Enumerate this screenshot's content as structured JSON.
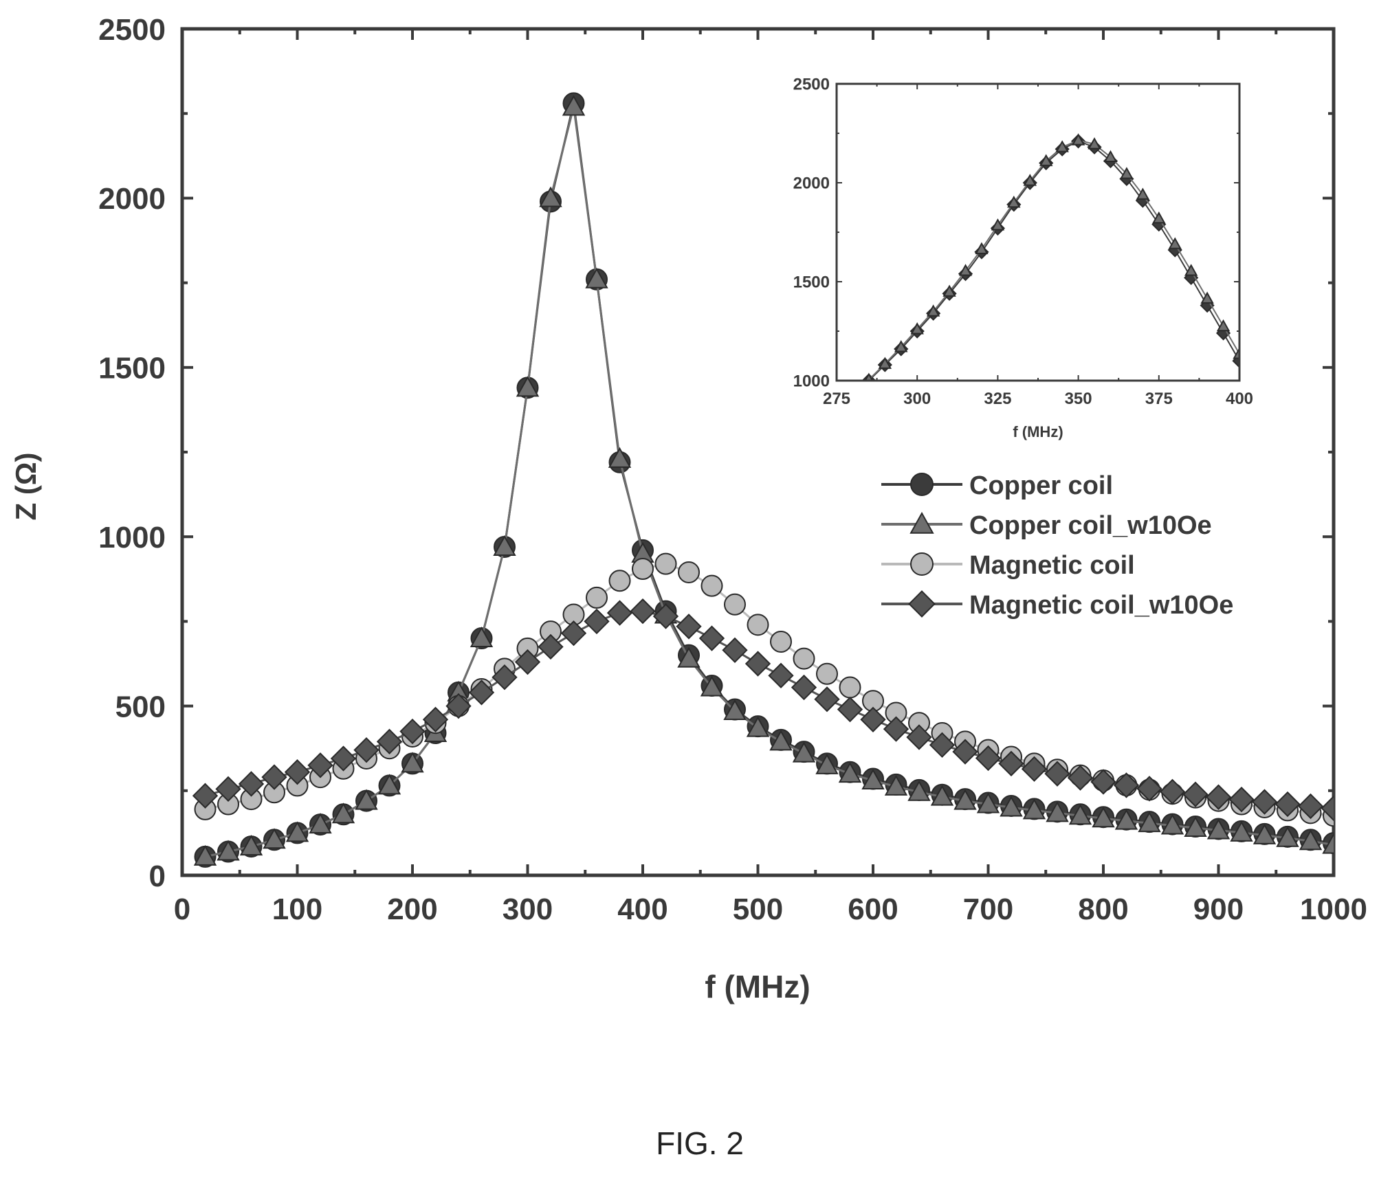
{
  "figure_label": "FIG. 2",
  "colors": {
    "axis": "#3a3a3a",
    "copper_coil": "#3b3b3b",
    "copper_coil_w10oe": "#6e6e6e",
    "magnetic_coil": "#b9b9b9",
    "magnetic_coil_w10oe": "#555555"
  },
  "chart_data": [
    {
      "type": "line",
      "panel": "main",
      "title": "",
      "xlabel": "f (MHz)",
      "ylabel": "Z (Ω)",
      "xlim": [
        0,
        1000
      ],
      "ylim": [
        0,
        2500
      ],
      "x_ticks": [
        "0",
        "100",
        "200",
        "300",
        "400",
        "500",
        "600",
        "700",
        "800",
        "900",
        "1000"
      ],
      "y_ticks": [
        "0",
        "500",
        "1000",
        "1500",
        "2000",
        "2500"
      ],
      "legend_position": "right-middle",
      "grid": false,
      "series": [
        {
          "name": "Copper coil",
          "marker": "circle",
          "points": [
            [
              20,
              55
            ],
            [
              40,
              70
            ],
            [
              60,
              85
            ],
            [
              80,
              105
            ],
            [
              100,
              125
            ],
            [
              120,
              150
            ],
            [
              140,
              180
            ],
            [
              160,
              220
            ],
            [
              180,
              265
            ],
            [
              200,
              330
            ],
            [
              220,
              420
            ],
            [
              240,
              540
            ],
            [
              260,
              700
            ],
            [
              280,
              970
            ],
            [
              300,
              1440
            ],
            [
              320,
              1990
            ],
            [
              340,
              2280
            ],
            [
              360,
              1760
            ],
            [
              380,
              1220
            ],
            [
              400,
              960
            ],
            [
              420,
              780
            ],
            [
              440,
              650
            ],
            [
              460,
              560
            ],
            [
              480,
              490
            ],
            [
              500,
              440
            ],
            [
              520,
              400
            ],
            [
              540,
              365
            ],
            [
              560,
              330
            ],
            [
              580,
              305
            ],
            [
              600,
              285
            ],
            [
              620,
              268
            ],
            [
              640,
              252
            ],
            [
              660,
              238
            ],
            [
              680,
              225
            ],
            [
              700,
              214
            ],
            [
              720,
              205
            ],
            [
              740,
              196
            ],
            [
              760,
              188
            ],
            [
              780,
              180
            ],
            [
              800,
              172
            ],
            [
              820,
              165
            ],
            [
              840,
              158
            ],
            [
              860,
              151
            ],
            [
              880,
              144
            ],
            [
              900,
              137
            ],
            [
              920,
              130
            ],
            [
              940,
              122
            ],
            [
              960,
              114
            ],
            [
              980,
              105
            ],
            [
              1000,
              95
            ]
          ]
        },
        {
          "name": "Copper coil_w10Oe",
          "marker": "triangle",
          "points": [
            [
              20,
              55
            ],
            [
              40,
              70
            ],
            [
              60,
              85
            ],
            [
              80,
              105
            ],
            [
              100,
              125
            ],
            [
              120,
              150
            ],
            [
              140,
              180
            ],
            [
              160,
              220
            ],
            [
              180,
              265
            ],
            [
              200,
              330
            ],
            [
              220,
              420
            ],
            [
              240,
              540
            ],
            [
              260,
              700
            ],
            [
              280,
              970
            ],
            [
              300,
              1440
            ],
            [
              320,
              2000
            ],
            [
              340,
              2270
            ],
            [
              360,
              1760
            ],
            [
              380,
              1230
            ],
            [
              400,
              950
            ],
            [
              420,
              770
            ],
            [
              440,
              640
            ],
            [
              460,
              555
            ],
            [
              480,
              485
            ],
            [
              500,
              435
            ],
            [
              520,
              395
            ],
            [
              540,
              360
            ],
            [
              560,
              325
            ],
            [
              580,
              300
            ],
            [
              600,
              280
            ],
            [
              620,
              262
            ],
            [
              640,
              246
            ],
            [
              660,
              232
            ],
            [
              680,
              220
            ],
            [
              700,
              210
            ],
            [
              720,
              200
            ],
            [
              740,
              192
            ],
            [
              760,
              184
            ],
            [
              780,
              176
            ],
            [
              800,
              168
            ],
            [
              820,
              161
            ],
            [
              840,
              154
            ],
            [
              860,
              147
            ],
            [
              880,
              140
            ],
            [
              900,
              133
            ],
            [
              920,
              126
            ],
            [
              940,
              118
            ],
            [
              960,
              110
            ],
            [
              980,
              101
            ],
            [
              1000,
              90
            ]
          ]
        },
        {
          "name": "Magnetic coil",
          "marker": "circle",
          "points": [
            [
              20,
              195
            ],
            [
              40,
              210
            ],
            [
              60,
              225
            ],
            [
              80,
              245
            ],
            [
              100,
              265
            ],
            [
              120,
              290
            ],
            [
              140,
              315
            ],
            [
              160,
              345
            ],
            [
              180,
              375
            ],
            [
              200,
              410
            ],
            [
              220,
              450
            ],
            [
              240,
              500
            ],
            [
              260,
              550
            ],
            [
              280,
              610
            ],
            [
              300,
              670
            ],
            [
              320,
              720
            ],
            [
              340,
              770
            ],
            [
              360,
              820
            ],
            [
              380,
              870
            ],
            [
              400,
              905
            ],
            [
              420,
              920
            ],
            [
              440,
              895
            ],
            [
              460,
              855
            ],
            [
              480,
              800
            ],
            [
              500,
              740
            ],
            [
              520,
              690
            ],
            [
              540,
              640
            ],
            [
              560,
              595
            ],
            [
              580,
              555
            ],
            [
              600,
              515
            ],
            [
              620,
              480
            ],
            [
              640,
              450
            ],
            [
              660,
              420
            ],
            [
              680,
              395
            ],
            [
              700,
              370
            ],
            [
              720,
              350
            ],
            [
              740,
              330
            ],
            [
              760,
              312
            ],
            [
              780,
              295
            ],
            [
              800,
              280
            ],
            [
              820,
              266
            ],
            [
              840,
              253
            ],
            [
              860,
              241
            ],
            [
              880,
              230
            ],
            [
              900,
              220
            ],
            [
              920,
              210
            ],
            [
              940,
              201
            ],
            [
              960,
              192
            ],
            [
              980,
              184
            ],
            [
              1000,
              176
            ]
          ]
        },
        {
          "name": "Magnetic coil_w10Oe",
          "marker": "diamond",
          "points": [
            [
              20,
              235
            ],
            [
              40,
              255
            ],
            [
              60,
              270
            ],
            [
              80,
              290
            ],
            [
              100,
              305
            ],
            [
              120,
              325
            ],
            [
              140,
              345
            ],
            [
              160,
              370
            ],
            [
              180,
              395
            ],
            [
              200,
              425
            ],
            [
              220,
              460
            ],
            [
              240,
              500
            ],
            [
              260,
              540
            ],
            [
              280,
              585
            ],
            [
              300,
              630
            ],
            [
              320,
              675
            ],
            [
              340,
              715
            ],
            [
              360,
              750
            ],
            [
              380,
              775
            ],
            [
              400,
              780
            ],
            [
              420,
              765
            ],
            [
              440,
              735
            ],
            [
              460,
              700
            ],
            [
              480,
              665
            ],
            [
              500,
              625
            ],
            [
              520,
              590
            ],
            [
              540,
              555
            ],
            [
              560,
              520
            ],
            [
              580,
              490
            ],
            [
              600,
              460
            ],
            [
              620,
              432
            ],
            [
              640,
              408
            ],
            [
              660,
              385
            ],
            [
              680,
              365
            ],
            [
              700,
              346
            ],
            [
              720,
              330
            ],
            [
              740,
              314
            ],
            [
              760,
              300
            ],
            [
              780,
              288
            ],
            [
              800,
              276
            ],
            [
              820,
              266
            ],
            [
              840,
              256
            ],
            [
              860,
              247
            ],
            [
              880,
              239
            ],
            [
              900,
              231
            ],
            [
              920,
              224
            ],
            [
              940,
              217
            ],
            [
              960,
              210
            ],
            [
              980,
              204
            ],
            [
              1000,
              198
            ]
          ]
        }
      ]
    },
    {
      "type": "line",
      "panel": "inset",
      "title": "",
      "xlabel": "f (MHz)",
      "ylabel": "",
      "xlim": [
        275,
        400
      ],
      "ylim": [
        1000,
        2500
      ],
      "x_ticks": [
        "275",
        "300",
        "325",
        "350",
        "375",
        "400"
      ],
      "y_ticks": [
        "1000",
        "1500",
        "2000",
        "2500"
      ],
      "grid": false,
      "series": [
        {
          "name": "Copper coil",
          "marker": "diamond",
          "points": [
            [
              285,
              1000
            ],
            [
              290,
              1080
            ],
            [
              295,
              1160
            ],
            [
              300,
              1250
            ],
            [
              305,
              1340
            ],
            [
              310,
              1440
            ],
            [
              315,
              1540
            ],
            [
              320,
              1650
            ],
            [
              325,
              1770
            ],
            [
              330,
              1890
            ],
            [
              335,
              2000
            ],
            [
              340,
              2100
            ],
            [
              345,
              2170
            ],
            [
              350,
              2210
            ],
            [
              355,
              2180
            ],
            [
              360,
              2110
            ],
            [
              365,
              2020
            ],
            [
              370,
              1910
            ],
            [
              375,
              1790
            ],
            [
              380,
              1660
            ],
            [
              385,
              1520
            ],
            [
              390,
              1380
            ],
            [
              395,
              1240
            ],
            [
              400,
              1100
            ]
          ]
        },
        {
          "name": "Copper coil_w10Oe",
          "marker": "triangle",
          "points": [
            [
              285,
              1005
            ],
            [
              290,
              1085
            ],
            [
              295,
              1170
            ],
            [
              300,
              1260
            ],
            [
              305,
              1350
            ],
            [
              310,
              1450
            ],
            [
              315,
              1555
            ],
            [
              320,
              1665
            ],
            [
              325,
              1785
            ],
            [
              330,
              1900
            ],
            [
              335,
              2010
            ],
            [
              340,
              2110
            ],
            [
              345,
              2180
            ],
            [
              350,
              2215
            ],
            [
              355,
              2195
            ],
            [
              360,
              2130
            ],
            [
              365,
              2045
            ],
            [
              370,
              1940
            ],
            [
              375,
              1820
            ],
            [
              380,
              1690
            ],
            [
              385,
              1555
            ],
            [
              390,
              1415
            ],
            [
              395,
              1275
            ],
            [
              400,
              1135
            ]
          ]
        }
      ]
    }
  ]
}
